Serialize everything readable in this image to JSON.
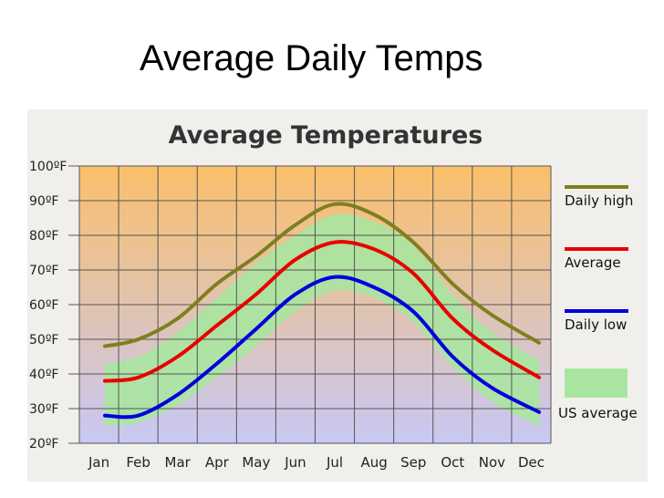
{
  "slide": {
    "title": "Average Daily Temps"
  },
  "chart_data": {
    "type": "line",
    "title": "Average Temperatures",
    "xlabel": "",
    "ylabel": "",
    "categories": [
      "Jan",
      "Feb",
      "Mar",
      "Apr",
      "May",
      "Jun",
      "Jul",
      "Aug",
      "Sep",
      "Oct",
      "Nov",
      "Dec"
    ],
    "y_ticks": [
      "100ºF",
      "90ºF",
      "80ºF",
      "70ºF",
      "60ºF",
      "50ºF",
      "40ºF",
      "30ºF",
      "20ºF"
    ],
    "ylim": [
      20,
      100
    ],
    "grid": true,
    "legend_position": "right",
    "series": [
      {
        "name": "Daily high",
        "color": "#7f7f1f",
        "x": [
          0.15,
          1,
          2,
          3,
          4,
          5,
          6,
          7,
          8,
          9,
          10,
          11.2
        ],
        "values": [
          48,
          50,
          56,
          66,
          74,
          83,
          89,
          86,
          78,
          66,
          57,
          49
        ]
      },
      {
        "name": "Average",
        "color": "#e80000",
        "x": [
          0.15,
          1,
          2,
          3,
          4,
          5,
          6,
          7,
          8,
          9,
          10,
          11.2
        ],
        "values": [
          38,
          39,
          45,
          54,
          63,
          73,
          78,
          76,
          69,
          56,
          47,
          39
        ]
      },
      {
        "name": "Daily low",
        "color": "#0000dd",
        "x": [
          0.15,
          1,
          2,
          3,
          4,
          5,
          6,
          7,
          8,
          9,
          10,
          11.2
        ],
        "values": [
          28,
          28,
          34,
          43,
          53,
          63,
          68,
          65,
          58,
          45,
          36,
          29
        ]
      }
    ],
    "us_average": {
      "name": "US average",
      "color": "#a8e6a0",
      "x": [
        0.15,
        1,
        2,
        3,
        4,
        5,
        6,
        7,
        8,
        9,
        10,
        11.2
      ],
      "upper": [
        43,
        45,
        52,
        62,
        72,
        80,
        86,
        84,
        77,
        63,
        52,
        44
      ],
      "lower": [
        25,
        26,
        31,
        39,
        48,
        58,
        64,
        62,
        55,
        42,
        32,
        25
      ]
    },
    "background_gradient": [
      "#fbbf6a",
      "#c8c8f4"
    ]
  }
}
